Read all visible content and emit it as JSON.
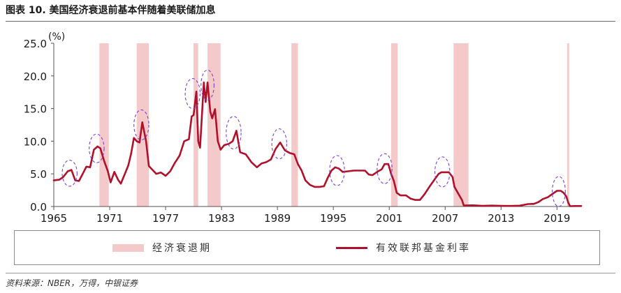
{
  "figure": {
    "title": "图表 10. 美国经济衰退前基本伴随着美联储加息",
    "source": "资料来源：NBER，万得，中银证券"
  },
  "colors": {
    "recession": "#f4c9c9",
    "rate_line": "#b0102a",
    "highlight_ellipse": "#7b3fd6",
    "axis": "#555555"
  },
  "chart_data": {
    "type": "line",
    "ylabel": "(%)",
    "ylim": [
      0,
      25
    ],
    "y_ticks": [
      "0.0",
      "5.0",
      "10.0",
      "15.0",
      "20.0",
      "25.0"
    ],
    "y_tick_values": [
      0,
      5,
      10,
      15,
      20,
      25
    ],
    "xlim": [
      1965,
      2021.6
    ],
    "x_ticks": [
      "1965",
      "1971",
      "1977",
      "1983",
      "1989",
      "1995",
      "2001",
      "2007",
      "2013",
      "2019"
    ],
    "x_tick_values": [
      1965,
      1971,
      1977,
      1983,
      1989,
      1995,
      2001,
      2007,
      2013,
      2019
    ],
    "grid": false,
    "legend": {
      "position": "bottom",
      "entries": [
        {
          "label": "经济衰退期",
          "kind": "area"
        },
        {
          "label": "有效联邦基金利率",
          "kind": "line"
        }
      ]
    },
    "recession_periods": [
      [
        1969.9,
        1970.9
      ],
      [
        1973.9,
        1975.2
      ],
      [
        1980.0,
        1980.5
      ],
      [
        1981.5,
        1982.9
      ],
      [
        1990.5,
        1991.2
      ],
      [
        2001.2,
        2001.9
      ],
      [
        2007.9,
        2009.5
      ],
      [
        2020.1,
        2020.3
      ]
    ],
    "series": [
      {
        "name": "有效联邦基金利率",
        "x": [
          1965.0,
          1965.6,
          1966.0,
          1966.5,
          1966.9,
          1967.3,
          1967.7,
          1968.1,
          1968.5,
          1968.9,
          1969.3,
          1969.7,
          1970.0,
          1970.4,
          1970.8,
          1971.1,
          1971.5,
          1971.9,
          1972.2,
          1972.6,
          1973.0,
          1973.3,
          1973.6,
          1973.9,
          1974.2,
          1974.5,
          1974.9,
          1975.2,
          1975.6,
          1976.0,
          1976.5,
          1977.0,
          1977.5,
          1978.0,
          1978.5,
          1979.0,
          1979.5,
          1979.8,
          1980.0,
          1980.3,
          1980.5,
          1980.7,
          1980.9,
          1981.1,
          1981.3,
          1981.5,
          1981.8,
          1982.0,
          1982.3,
          1982.6,
          1982.9,
          1983.3,
          1983.8,
          1984.2,
          1984.6,
          1985.0,
          1985.6,
          1986.2,
          1986.8,
          1987.3,
          1987.8,
          1988.3,
          1988.8,
          1989.3,
          1989.8,
          1990.3,
          1990.8,
          1991.2,
          1991.6,
          1992.0,
          1992.5,
          1993.0,
          1993.5,
          1994.0,
          1994.4,
          1994.8,
          1995.2,
          1995.6,
          1996.0,
          1996.6,
          1997.2,
          1997.8,
          1998.4,
          1998.8,
          1999.2,
          1999.7,
          2000.2,
          2000.5,
          2000.9,
          2001.2,
          2001.5,
          2001.8,
          2002.2,
          2002.8,
          2003.3,
          2003.8,
          2004.3,
          2004.8,
          2005.3,
          2005.8,
          2006.3,
          2006.6,
          2007.0,
          2007.4,
          2007.8,
          2008.0,
          2008.4,
          2008.8,
          2009.0,
          2010.0,
          2011.0,
          2012.0,
          2013.0,
          2014.0,
          2015.0,
          2015.9,
          2016.5,
          2017.0,
          2017.5,
          2018.0,
          2018.5,
          2019.0,
          2019.4,
          2019.7,
          2020.0,
          2020.2,
          2020.4,
          2021.0,
          2021.6
        ],
        "values": [
          4.0,
          4.1,
          4.5,
          5.4,
          5.6,
          4.0,
          3.9,
          5.0,
          6.1,
          6.0,
          8.7,
          9.2,
          8.9,
          7.0,
          5.4,
          3.7,
          5.3,
          4.1,
          3.5,
          4.9,
          6.3,
          8.1,
          10.5,
          10.0,
          9.8,
          12.9,
          10.0,
          6.2,
          5.6,
          5.0,
          5.2,
          4.7,
          5.4,
          6.7,
          7.8,
          10.0,
          10.3,
          13.8,
          14.0,
          17.6,
          10.0,
          9.0,
          14.0,
          19.0,
          16.0,
          19.0,
          14.5,
          13.5,
          14.9,
          10.0,
          8.7,
          9.4,
          9.6,
          10.0,
          11.6,
          8.3,
          8.0,
          6.8,
          6.0,
          6.6,
          6.8,
          7.2,
          8.8,
          9.8,
          8.6,
          8.2,
          8.0,
          6.5,
          5.5,
          4.0,
          3.3,
          3.0,
          3.0,
          3.1,
          4.4,
          5.5,
          6.0,
          5.8,
          5.3,
          5.4,
          5.5,
          5.5,
          5.5,
          4.9,
          4.8,
          5.3,
          5.7,
          6.5,
          6.5,
          5.0,
          3.9,
          2.1,
          1.7,
          1.7,
          1.2,
          1.0,
          1.0,
          1.9,
          3.0,
          4.0,
          5.0,
          5.25,
          5.25,
          5.25,
          4.5,
          3.0,
          2.0,
          1.0,
          0.16,
          0.18,
          0.1,
          0.14,
          0.11,
          0.09,
          0.13,
          0.37,
          0.4,
          0.66,
          1.15,
          1.41,
          1.9,
          2.4,
          2.4,
          2.1,
          1.55,
          0.65,
          0.05,
          0.08,
          0.08
        ]
      }
    ],
    "highlights": [
      {
        "x": 1966.7,
        "y": 5.1,
        "rx": 0.8,
        "ry": 2.0
      },
      {
        "x": 1969.6,
        "y": 8.9,
        "rx": 0.8,
        "ry": 2.2
      },
      {
        "x": 1974.4,
        "y": 12.5,
        "rx": 0.8,
        "ry": 2.3
      },
      {
        "x": 1979.9,
        "y": 17.3,
        "rx": 0.8,
        "ry": 2.3
      },
      {
        "x": 1981.5,
        "y": 18.6,
        "rx": 0.7,
        "ry": 2.3
      },
      {
        "x": 1984.3,
        "y": 11.3,
        "rx": 0.8,
        "ry": 2.5
      },
      {
        "x": 1989.2,
        "y": 9.6,
        "rx": 0.8,
        "ry": 2.3
      },
      {
        "x": 1995.4,
        "y": 5.5,
        "rx": 0.8,
        "ry": 2.3
      },
      {
        "x": 2000.5,
        "y": 5.8,
        "rx": 0.8,
        "ry": 2.3
      },
      {
        "x": 2006.7,
        "y": 5.3,
        "rx": 0.8,
        "ry": 2.3
      },
      {
        "x": 2019.2,
        "y": 2.3,
        "rx": 0.7,
        "ry": 2.3
      }
    ]
  }
}
